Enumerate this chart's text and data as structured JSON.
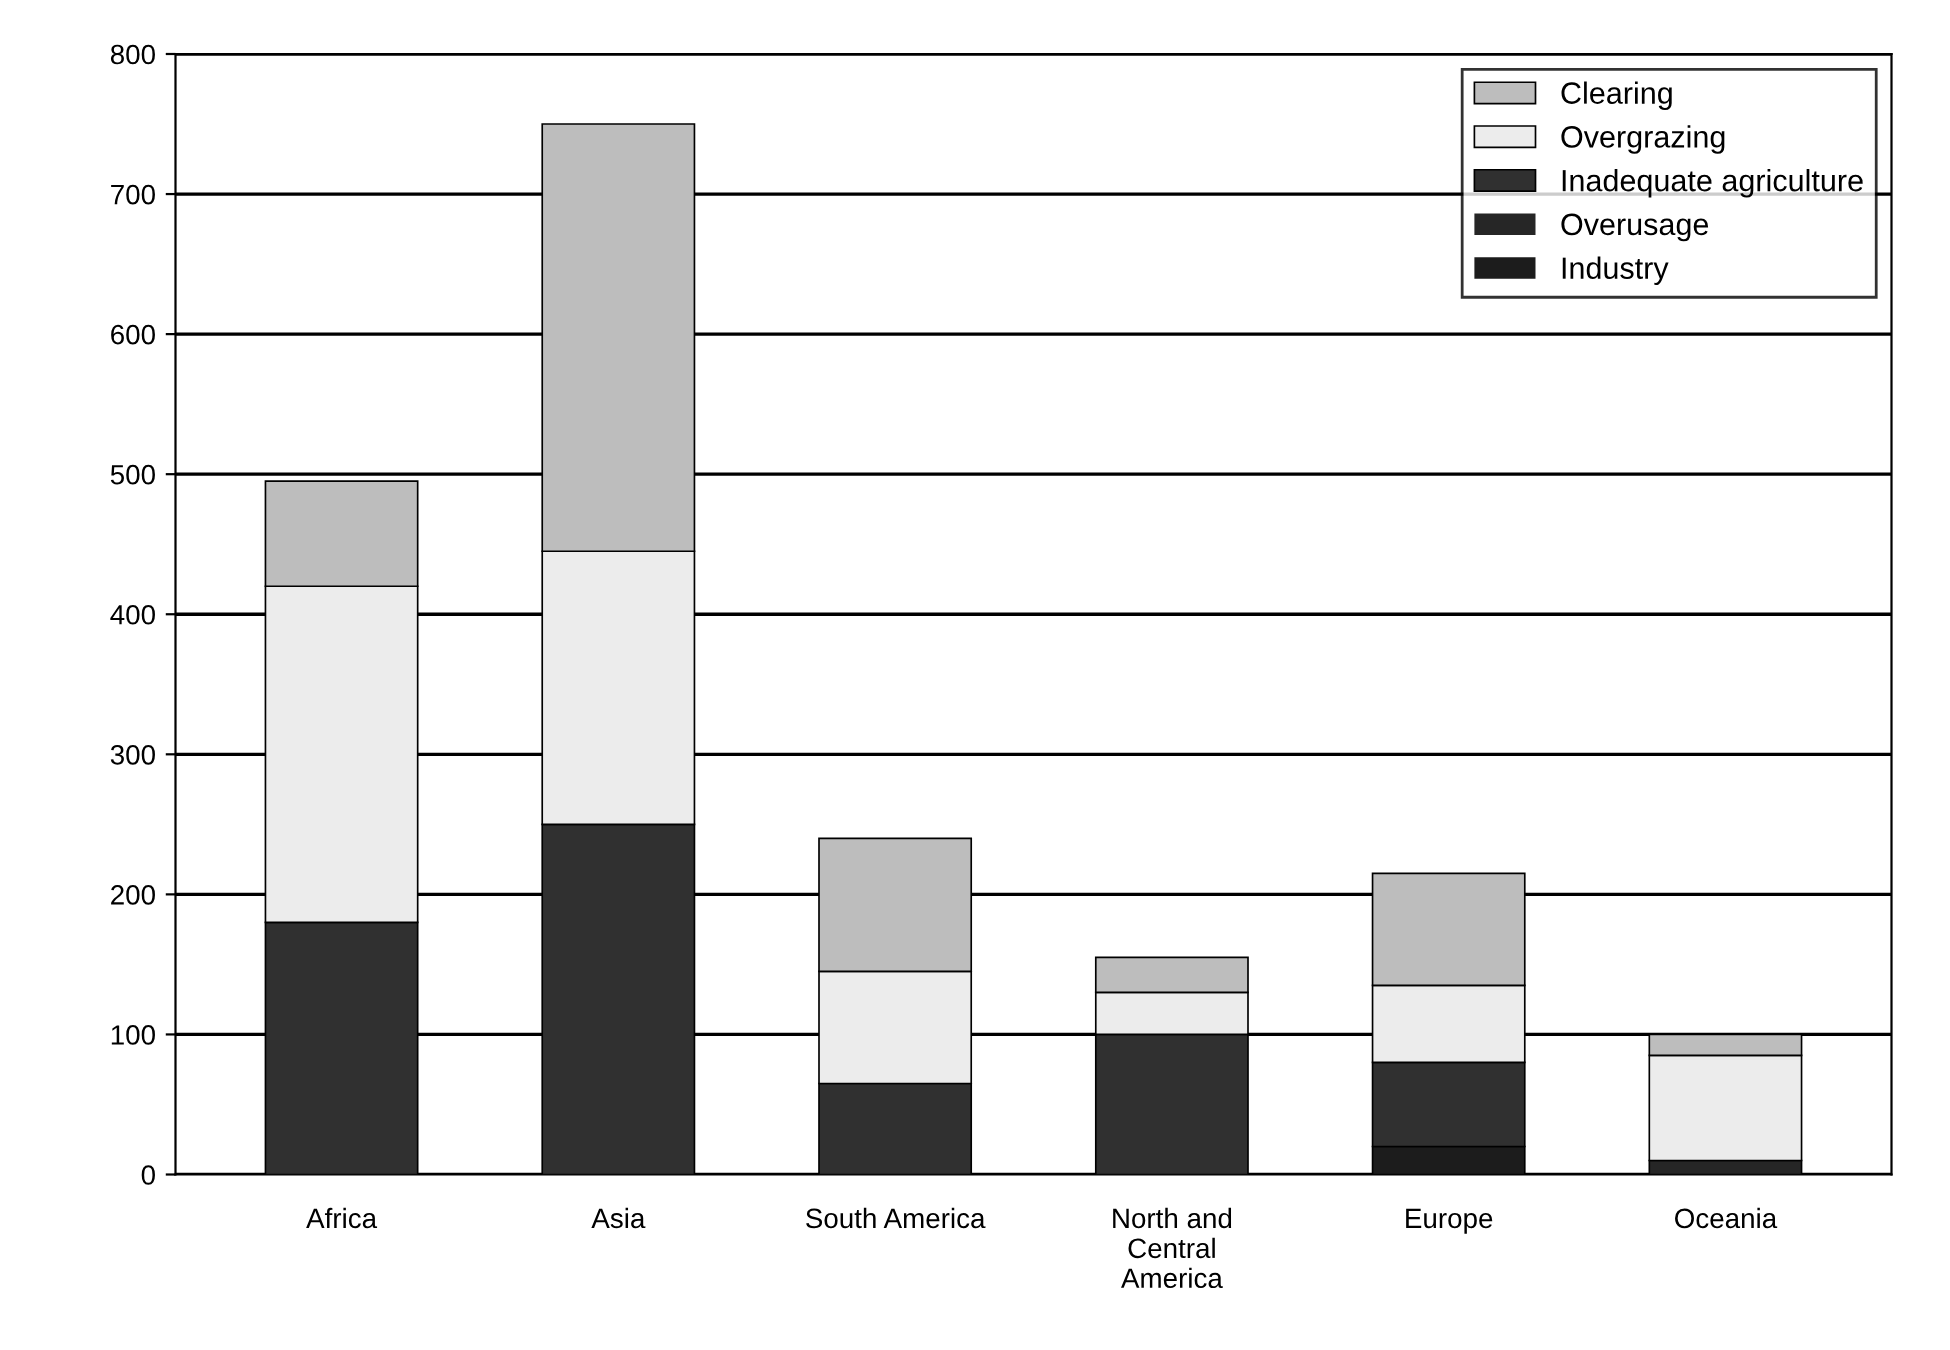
{
  "chart_data": {
    "type": "bar",
    "stacked": true,
    "categories": [
      "Africa",
      "Asia",
      "South America",
      "North and\nCentral\nAmerica",
      "Europe",
      "Oceania"
    ],
    "series": [
      {
        "name": "Industry",
        "color": "#1c1c1c",
        "values": [
          0,
          0,
          0,
          0,
          20,
          0
        ]
      },
      {
        "name": "Overusage",
        "color": "#262626",
        "values": [
          0,
          0,
          0,
          0,
          0,
          10
        ]
      },
      {
        "name": "Inadequate agriculture",
        "color": "#303030",
        "values": [
          180,
          250,
          65,
          100,
          60,
          0
        ]
      },
      {
        "name": "Overgrazing",
        "color": "#ececec",
        "values": [
          240,
          195,
          80,
          30,
          55,
          75
        ]
      },
      {
        "name": "Clearing",
        "color": "#bdbdbd",
        "values": [
          75,
          305,
          95,
          25,
          80,
          15
        ]
      }
    ],
    "ylim": [
      0,
      800
    ],
    "yticks": [
      0,
      100,
      200,
      300,
      400,
      500,
      600,
      700,
      800
    ],
    "grid": "y",
    "legend": "top right"
  }
}
